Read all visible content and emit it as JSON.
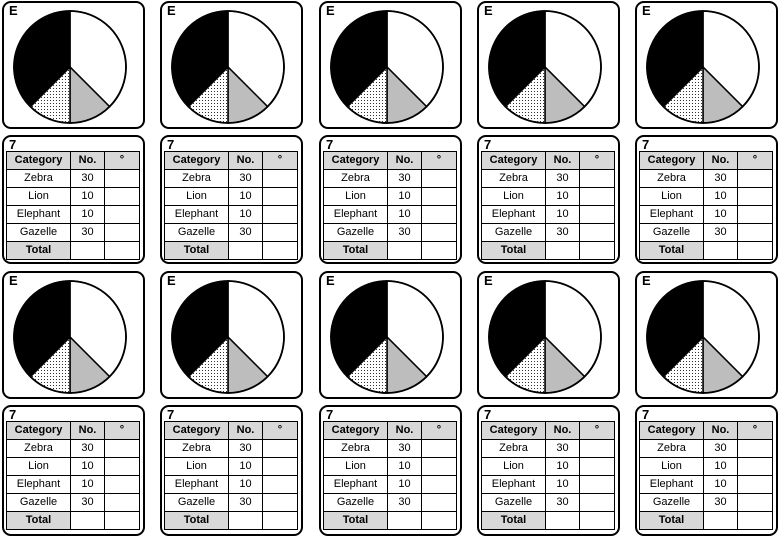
{
  "pie_card_label": "E",
  "table_card_label": "7",
  "table": {
    "headers": [
      "Category",
      "No.",
      "°"
    ],
    "rows": [
      {
        "category": "Zebra",
        "count": "30"
      },
      {
        "category": "Lion",
        "count": "10"
      },
      {
        "category": "Elephant",
        "count": "10"
      },
      {
        "category": "Gazelle",
        "count": "30"
      }
    ],
    "total_label": "Total"
  },
  "colors": {
    "border": "#000000",
    "header_fill": "#d8d8d8",
    "slice_black": "#000000",
    "slice_white": "#ffffff",
    "slice_grey": "#bdbdbd",
    "slice_dotted": "#ffffff"
  },
  "chart_data": {
    "type": "pie",
    "title": "",
    "slices": [
      {
        "label": "",
        "value": 30,
        "fill": "black"
      },
      {
        "label": "",
        "value": 30,
        "fill": "white"
      },
      {
        "label": "",
        "value": 10,
        "fill": "grey"
      },
      {
        "label": "",
        "value": 10,
        "fill": "dotted"
      }
    ],
    "slice_order": "clockwise from 12 o'clock",
    "legend": "none"
  },
  "repetitions": 10
}
